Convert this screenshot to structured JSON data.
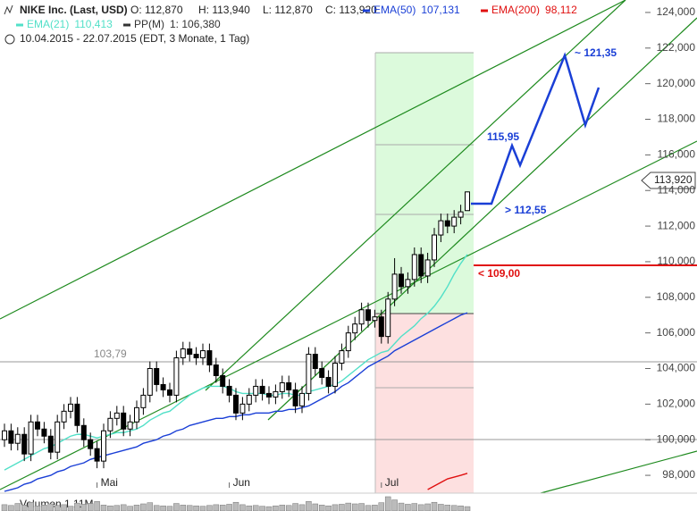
{
  "chart_data": {
    "type": "candlestick",
    "title": "NIKE Inc. (Last, USD)",
    "quote": [
      "O: 112,870",
      "H: 113,940",
      "L: 112,870",
      "C: 113,920"
    ],
    "period": "10.04.2015 - 22.07.2015 (EDT, 3 Monate, 1 Tag)",
    "categories": [
      null,
      null,
      null,
      null,
      null,
      null,
      null,
      null,
      null,
      null,
      null,
      null,
      null,
      null,
      "Mai",
      null,
      null,
      null,
      null,
      null,
      null,
      null,
      null,
      null,
      null,
      null,
      null,
      null,
      null,
      null,
      null,
      null,
      null,
      null,
      "Jun",
      null,
      null,
      null,
      null,
      null,
      null,
      null,
      null,
      null,
      null,
      null,
      null,
      null,
      null,
      null,
      null,
      null,
      null,
      null,
      null,
      null,
      null,
      "Jul",
      null,
      null,
      null,
      null,
      null,
      null,
      null,
      null,
      null,
      null,
      null,
      null,
      null
    ],
    "open": [
      100.0,
      100.5,
      99.8,
      100.3,
      99.2,
      101.0,
      100.6,
      100.2,
      99.3,
      101.0,
      101.6,
      102.0,
      100.8,
      100.0,
      99.5,
      98.8,
      100.5,
      101.2,
      101.5,
      100.6,
      101.0,
      101.8,
      102.5,
      104.0,
      103.1,
      102.8,
      102.5,
      104.6,
      105.1,
      104.8,
      104.6,
      105.0,
      104.2,
      103.6,
      103.0,
      102.5,
      101.5,
      102.0,
      102.5,
      103.0,
      102.6,
      102.4,
      102.7,
      103.2,
      102.8,
      101.9,
      102.6,
      104.8,
      104.0,
      103.5,
      103.0,
      104.3,
      105.0,
      106.0,
      106.5,
      107.3,
      106.7,
      106.9,
      105.8,
      107.9,
      109.3,
      108.6,
      109.0,
      110.4,
      109.2,
      110.1,
      111.5,
      112.3,
      112.0,
      112.5,
      112.87
    ],
    "high": [
      100.9,
      100.9,
      100.7,
      100.7,
      101.4,
      101.4,
      101.0,
      100.6,
      101.4,
      102.0,
      102.4,
      102.4,
      101.2,
      100.4,
      99.9,
      100.9,
      101.6,
      101.9,
      101.9,
      101.4,
      102.2,
      102.9,
      104.4,
      104.4,
      103.5,
      103.2,
      105.0,
      105.5,
      105.5,
      105.2,
      105.4,
      105.4,
      104.6,
      104.0,
      103.4,
      102.9,
      102.4,
      102.9,
      103.4,
      103.4,
      103.0,
      103.1,
      103.6,
      103.6,
      103.2,
      103.0,
      105.2,
      105.2,
      104.4,
      103.9,
      104.7,
      105.4,
      106.4,
      106.9,
      107.7,
      107.7,
      107.3,
      107.3,
      108.3,
      110.2,
      109.7,
      109.4,
      110.8,
      110.8,
      110.5,
      111.9,
      112.7,
      112.7,
      112.9,
      113.2,
      113.94
    ],
    "low": [
      99.6,
      99.4,
      99.4,
      98.8,
      98.8,
      100.2,
      99.8,
      98.9,
      98.9,
      100.6,
      101.2,
      100.4,
      99.6,
      99.1,
      98.4,
      98.4,
      100.1,
      100.8,
      100.2,
      100.2,
      100.6,
      101.4,
      102.1,
      102.7,
      102.4,
      102.1,
      102.1,
      104.2,
      104.4,
      104.2,
      104.2,
      103.8,
      103.2,
      102.6,
      102.1,
      101.1,
      101.1,
      101.6,
      102.1,
      102.2,
      102.0,
      102.0,
      102.3,
      102.4,
      101.5,
      101.5,
      102.2,
      103.6,
      103.1,
      102.6,
      102.6,
      103.9,
      104.6,
      105.6,
      106.1,
      106.3,
      106.3,
      105.4,
      105.4,
      107.5,
      108.2,
      108.2,
      108.6,
      108.8,
      108.8,
      109.7,
      111.1,
      111.6,
      111.6,
      112.1,
      112.87
    ],
    "close": [
      100.5,
      99.8,
      100.3,
      99.2,
      101.0,
      100.6,
      100.2,
      99.3,
      101.0,
      101.6,
      102.0,
      100.8,
      100.0,
      99.5,
      98.8,
      100.5,
      101.2,
      101.5,
      100.6,
      101.0,
      101.8,
      102.5,
      104.0,
      103.1,
      102.8,
      102.5,
      104.6,
      105.1,
      104.8,
      104.6,
      105.0,
      104.2,
      103.6,
      103.0,
      102.5,
      101.5,
      102.0,
      102.5,
      103.0,
      102.6,
      102.4,
      102.7,
      103.2,
      102.8,
      101.9,
      102.6,
      104.8,
      104.0,
      103.5,
      103.0,
      104.3,
      105.0,
      106.0,
      106.5,
      107.3,
      106.7,
      106.9,
      105.8,
      107.9,
      109.3,
      108.6,
      109.0,
      110.4,
      109.2,
      110.1,
      111.5,
      112.3,
      112.0,
      112.5,
      112.8,
      113.92
    ],
    "series": [
      {
        "name": "EMA(50)",
        "legend_value": "107,131",
        "color": "#1a3fd6",
        "values": [
          97.1,
          97.2,
          97.3,
          97.5,
          97.6,
          97.8,
          97.9,
          98.0,
          98.2,
          98.3,
          98.5,
          98.6,
          98.7,
          98.9,
          99.0,
          99.1,
          99.2,
          99.3,
          99.4,
          99.5,
          99.6,
          99.8,
          99.9,
          100.0,
          100.2,
          100.3,
          100.5,
          100.6,
          100.8,
          100.9,
          101.0,
          101.1,
          101.2,
          101.2,
          101.3,
          101.3,
          101.4,
          101.4,
          101.5,
          101.5,
          101.5,
          101.6,
          101.6,
          101.7,
          101.7,
          101.8,
          101.9,
          102.1,
          102.3,
          102.5,
          102.7,
          103.0,
          103.2,
          103.5,
          103.8,
          104.1,
          104.3,
          104.5,
          104.7,
          105.0,
          105.2,
          105.4,
          105.6,
          105.8,
          106.0,
          106.2,
          106.4,
          106.6,
          106.8,
          107.0,
          107.13
        ]
      },
      {
        "name": "EMA(200)",
        "legend_value": "98,112",
        "color": "#e01010",
        "values": [
          null,
          null,
          null,
          null,
          null,
          null,
          null,
          null,
          null,
          null,
          null,
          null,
          null,
          null,
          null,
          null,
          null,
          null,
          null,
          null,
          null,
          null,
          null,
          null,
          null,
          null,
          null,
          null,
          null,
          null,
          null,
          null,
          null,
          null,
          null,
          null,
          null,
          null,
          null,
          null,
          null,
          null,
          null,
          null,
          null,
          null,
          null,
          null,
          null,
          null,
          null,
          null,
          null,
          null,
          null,
          null,
          null,
          null,
          null,
          null,
          null,
          null,
          null,
          null,
          97.2,
          97.4,
          97.6,
          97.8,
          97.9,
          98.0,
          98.112
        ]
      },
      {
        "name": "EMA(21)",
        "legend_value": "110,413",
        "color": "#52e0c8",
        "values": [
          98.3,
          98.5,
          98.7,
          98.9,
          99.1,
          99.3,
          99.5,
          99.6,
          99.8,
          100.0,
          100.2,
          100.3,
          100.3,
          100.2,
          100.1,
          100.2,
          100.3,
          100.4,
          100.4,
          100.5,
          100.6,
          100.8,
          101.1,
          101.3,
          101.5,
          101.6,
          101.9,
          102.2,
          102.5,
          102.7,
          102.9,
          103.0,
          103.0,
          103.0,
          102.9,
          102.7,
          102.6,
          102.6,
          102.6,
          102.6,
          102.5,
          102.5,
          102.6,
          102.6,
          102.5,
          102.5,
          102.7,
          102.8,
          102.9,
          103.0,
          103.1,
          103.3,
          103.6,
          103.9,
          104.2,
          104.5,
          104.7,
          104.9,
          105.0,
          105.4,
          105.8,
          106.1,
          106.4,
          106.8,
          107.1,
          107.5,
          108.0,
          108.6,
          109.3,
          109.9,
          110.41
        ]
      }
    ],
    "pivot": {
      "name": "PP(M)",
      "legend_value": "1: 106,380",
      "color": "#333333"
    },
    "ylim": [
      97.0,
      124.7
    ],
    "yticks": [
      {
        "value": 98,
        "label": "98,000"
      },
      {
        "value": 100,
        "label": "100,000"
      },
      {
        "value": 102,
        "label": "102,000"
      },
      {
        "value": 104,
        "label": "104,000"
      },
      {
        "value": 106,
        "label": "106,000"
      },
      {
        "value": 108,
        "label": "108,000"
      },
      {
        "value": 110,
        "label": "110,000"
      },
      {
        "value": 112,
        "label": "112,000"
      },
      {
        "value": 114,
        "label": "114,000"
      },
      {
        "value": 116,
        "label": "116,000"
      },
      {
        "value": 118,
        "label": "118,000"
      },
      {
        "value": 120,
        "label": "120,000"
      },
      {
        "value": 122,
        "label": "122,000"
      },
      {
        "value": 124,
        "label": "124,000"
      }
    ],
    "price_tag": "113,920",
    "annotations": [
      "~ 121,35",
      "115,95",
      "> 112,55",
      "< 109,00",
      "103,79"
    ],
    "volume_label": "Volumen 1,11M",
    "volume": [
      1.6,
      1.4,
      1.9,
      1.5,
      2.2,
      1.3,
      1.5,
      1.8,
      1.4,
      1.6,
      1.2,
      2.0,
      1.7,
      1.9,
      2.4,
      1.5,
      1.3,
      1.4,
      1.6,
      1.2,
      1.5,
      1.8,
      2.1,
      1.4,
      1.3,
      1.2,
      1.9,
      1.5,
      1.4,
      1.3,
      1.2,
      1.4,
      1.6,
      1.5,
      1.7,
      2.2,
      1.6,
      1.3,
      1.4,
      1.2,
      1.1,
      1.3,
      1.5,
      1.4,
      1.9,
      1.6,
      2.4,
      1.8,
      1.5,
      1.3,
      1.6,
      1.7,
      2.0,
      1.8,
      1.9,
      1.4,
      1.5,
      2.1,
      3.6,
      2.8,
      2.0,
      1.7,
      1.9,
      1.6,
      1.8,
      2.2,
      1.7,
      1.5,
      1.4,
      1.3,
      1.11
    ]
  }
}
